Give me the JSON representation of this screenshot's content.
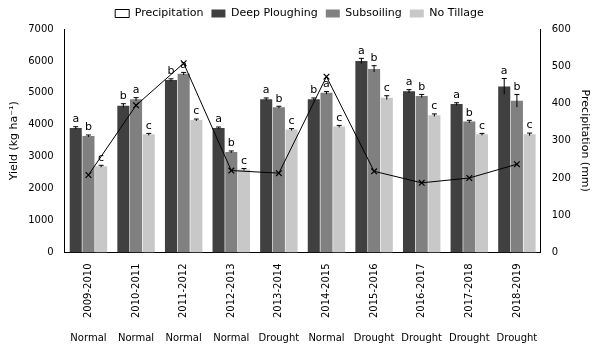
{
  "chart_data": {
    "type": "bar",
    "categories": [
      "2009-2010",
      "2010-2011",
      "2011-2012",
      "2012-2013",
      "2013-2014",
      "2014-2015",
      "2015-2016",
      "2016-2017",
      "2017-2018",
      "2018-2019"
    ],
    "conditions": [
      "Normal",
      "Normal",
      "Normal",
      "Normal",
      "Drought",
      "Normal",
      "Drought",
      "Drought",
      "Drought",
      "Drought"
    ],
    "series": [
      {
        "name": "Deep Ploughing",
        "type": "bar",
        "color": "#404040",
        "values": [
          3900,
          4600,
          5400,
          3900,
          4800,
          4800,
          6000,
          5050,
          4650,
          5200
        ],
        "errors": [
          40,
          60,
          40,
          30,
          40,
          40,
          80,
          50,
          40,
          250
        ],
        "letters": [
          "a",
          "b",
          "b",
          "a",
          "a",
          "b",
          "a",
          "a",
          "a",
          "a"
        ]
      },
      {
        "name": "Subsoiling",
        "type": "bar",
        "color": "#808080",
        "values": [
          3650,
          4800,
          5600,
          3150,
          4550,
          5000,
          5750,
          4900,
          4100,
          4750
        ],
        "errors": [
          30,
          50,
          40,
          30,
          30,
          40,
          100,
          50,
          40,
          200
        ],
        "letters": [
          "b",
          "a",
          "a",
          "b",
          "b",
          "a",
          "b",
          "b",
          "b",
          "b"
        ]
      },
      {
        "name": "No Tillage",
        "type": "bar",
        "color": "#c8c8c8",
        "values": [
          2700,
          3700,
          4150,
          2600,
          3850,
          3950,
          4850,
          4300,
          3700,
          3700
        ],
        "errors": [
          30,
          30,
          30,
          30,
          30,
          30,
          60,
          40,
          30,
          40
        ],
        "letters": [
          "c",
          "c",
          "c",
          "c",
          "c",
          "c",
          "c",
          "c",
          "c",
          "c"
        ]
      },
      {
        "name": "Precipitation",
        "type": "line",
        "axis": "y2",
        "color": "#000000",
        "marker": "x",
        "values": [
          208,
          395,
          508,
          220,
          213,
          472,
          218,
          187,
          200,
          237
        ]
      }
    ],
    "y_label": "Yield (kg ha⁻¹)",
    "y2_label": "Precipitation (mm)",
    "ylim": [
      0,
      7000
    ],
    "yticks": [
      0,
      1000,
      2000,
      3000,
      4000,
      5000,
      6000,
      7000
    ],
    "y2lim": [
      0,
      600
    ],
    "y2ticks": [
      0,
      100,
      200,
      300,
      400,
      500,
      600
    ],
    "legend": "top",
    "grid": false
  }
}
